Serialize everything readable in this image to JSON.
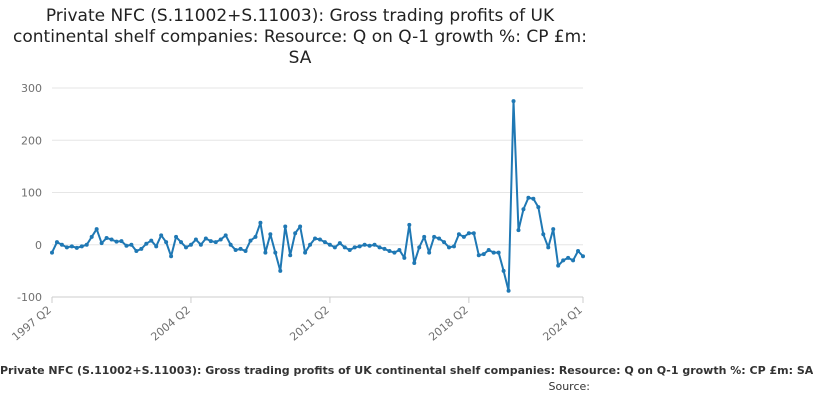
{
  "chart_data": {
    "type": "line",
    "title": "Private NFC (S.11002+S.11003): Gross trading profits of UK continental shelf companies: Resource: Q on Q-1 growth %: CP £m: SA",
    "xlabel": "",
    "ylabel": "",
    "ylim": [
      -100,
      300
    ],
    "yticks": [
      -100,
      0,
      100,
      200,
      300
    ],
    "xticks": [
      "1997 Q2",
      "2004 Q2",
      "2011 Q2",
      "2018 Q2",
      "2024 Q1"
    ],
    "grid": true,
    "legend": "none",
    "line_color": "#1f78b4",
    "x_start": "1997 Q2",
    "x": [
      "1997 Q2",
      "1997 Q3",
      "1997 Q4",
      "1998 Q1",
      "1998 Q2",
      "1998 Q3",
      "1998 Q4",
      "1999 Q1",
      "1999 Q2",
      "1999 Q3",
      "1999 Q4",
      "2000 Q1",
      "2000 Q2",
      "2000 Q3",
      "2000 Q4",
      "2001 Q1",
      "2001 Q2",
      "2001 Q3",
      "2001 Q4",
      "2002 Q1",
      "2002 Q2",
      "2002 Q3",
      "2002 Q4",
      "2003 Q1",
      "2003 Q2",
      "2003 Q3",
      "2003 Q4",
      "2004 Q1",
      "2004 Q2",
      "2004 Q3",
      "2004 Q4",
      "2005 Q1",
      "2005 Q2",
      "2005 Q3",
      "2005 Q4",
      "2006 Q1",
      "2006 Q2",
      "2006 Q3",
      "2006 Q4",
      "2007 Q1",
      "2007 Q2",
      "2007 Q3",
      "2007 Q4",
      "2008 Q1",
      "2008 Q2",
      "2008 Q3",
      "2008 Q4",
      "2009 Q1",
      "2009 Q2",
      "2009 Q3",
      "2009 Q4",
      "2010 Q1",
      "2010 Q2",
      "2010 Q3",
      "2010 Q4",
      "2011 Q1",
      "2011 Q2",
      "2011 Q3",
      "2011 Q4",
      "2012 Q1",
      "2012 Q2",
      "2012 Q3",
      "2012 Q4",
      "2013 Q1",
      "2013 Q2",
      "2013 Q3",
      "2013 Q4",
      "2014 Q1",
      "2014 Q2",
      "2014 Q3",
      "2014 Q4",
      "2015 Q1",
      "2015 Q2",
      "2015 Q3",
      "2015 Q4",
      "2016 Q1",
      "2016 Q2",
      "2016 Q3",
      "2016 Q4",
      "2017 Q1",
      "2017 Q2",
      "2017 Q3",
      "2017 Q4",
      "2018 Q1",
      "2018 Q2",
      "2018 Q3",
      "2018 Q4",
      "2019 Q1",
      "2019 Q2",
      "2019 Q3",
      "2019 Q4",
      "2020 Q1",
      "2020 Q2",
      "2020 Q3",
      "2020 Q4",
      "2021 Q1",
      "2021 Q2",
      "2021 Q3",
      "2021 Q4",
      "2022 Q1",
      "2022 Q2",
      "2022 Q3",
      "2022 Q4",
      "2023 Q1",
      "2023 Q2",
      "2023 Q3",
      "2023 Q4",
      "2024 Q1"
    ],
    "series": [
      {
        "values": [
          -15,
          5,
          0,
          -5,
          -3,
          -6,
          -3,
          0,
          15,
          30,
          3,
          13,
          10,
          6,
          7,
          -2,
          0,
          -12,
          -8,
          2,
          8,
          -3,
          18,
          5,
          -22,
          15,
          5,
          -5,
          0,
          10,
          0,
          12,
          7,
          5,
          10,
          18,
          0,
          -10,
          -8,
          -12,
          8,
          15,
          42,
          -15,
          20,
          -15,
          -50,
          35,
          -20,
          22,
          35,
          -15,
          0,
          12,
          10,
          5,
          0,
          -5,
          3,
          -5,
          -10,
          -5,
          -3,
          0,
          -2,
          0,
          -5,
          -8,
          -12,
          -15,
          -10,
          -25,
          38,
          -35,
          -5,
          15,
          -15,
          15,
          12,
          5,
          -5,
          -3,
          20,
          15,
          22,
          22,
          -20,
          -18,
          -10,
          -15,
          -15,
          -50,
          -88,
          275,
          28,
          68,
          90,
          88,
          72,
          20,
          -5,
          30,
          -40,
          -30,
          -25,
          -30,
          -12,
          -22
        ]
      }
    ]
  },
  "footer": {
    "caption": "Private NFC (S.11002+S.11003): Gross trading profits of UK continental shelf companies: Resource: Q on Q-1 growth %: CP £m: SA",
    "source": "Source:"
  }
}
